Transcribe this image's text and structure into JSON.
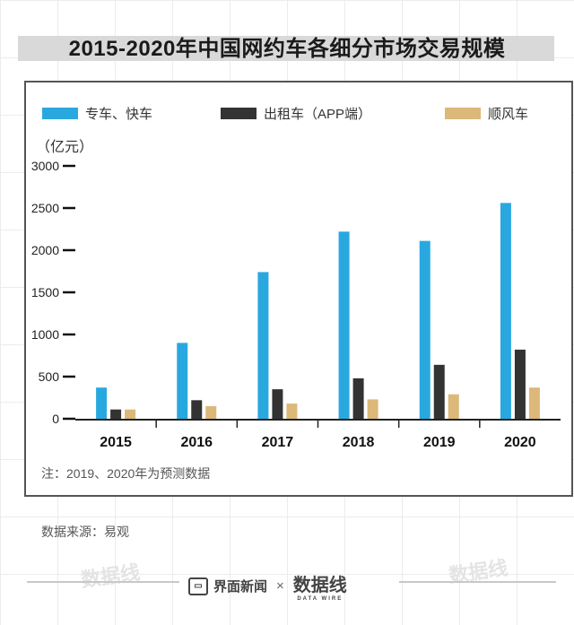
{
  "title": "2015-2020年中国网约车各细分市场交易规模",
  "unit_label": "（亿元）",
  "note": "注：2019、2020年为预测数据",
  "source": "数据来源：易观",
  "footer": {
    "brand1": "界面新闻",
    "separator": "×",
    "brand2": "数据线",
    "brand2_sub": "DATA WIRE"
  },
  "watermark_text": "数据线",
  "colors": {
    "zhuanche": "#29a8e0",
    "chuzuche": "#333333",
    "shunfeng": "#dcb879"
  },
  "chart_data": {
    "type": "bar",
    "categories": [
      "2015",
      "2016",
      "2017",
      "2018",
      "2019",
      "2020"
    ],
    "series": [
      {
        "name": "专车、快车",
        "values": [
          370,
          900,
          1740,
          2220,
          2110,
          2560
        ]
      },
      {
        "name": "出租车（APP端）",
        "values": [
          110,
          220,
          350,
          480,
          640,
          820
        ]
      },
      {
        "name": "顺风车",
        "values": [
          110,
          150,
          180,
          230,
          290,
          370
        ]
      }
    ],
    "ylim": [
      0,
      3000
    ],
    "yticks": [
      0,
      500,
      1000,
      1500,
      2000,
      2500,
      3000
    ],
    "legend_position": "top"
  }
}
